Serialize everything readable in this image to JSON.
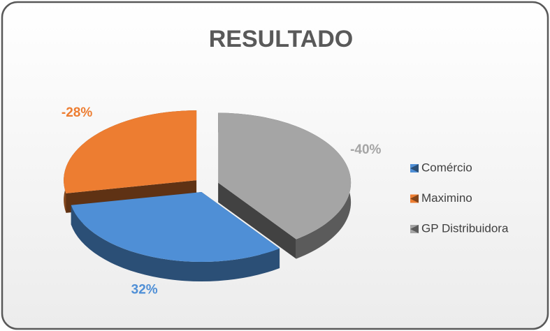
{
  "chart_data": {
    "type": "pie",
    "title": "RESULTADO",
    "categories": [
      "Comércio",
      "Maximino",
      "GP Distribuidora"
    ],
    "values": [
      32,
      -28,
      -40
    ],
    "value_labels": [
      "32%",
      "-28%",
      "-40%"
    ],
    "colors": [
      "#4f8fd6",
      "#ed7d31",
      "#a5a5a5"
    ],
    "legend": "right"
  }
}
